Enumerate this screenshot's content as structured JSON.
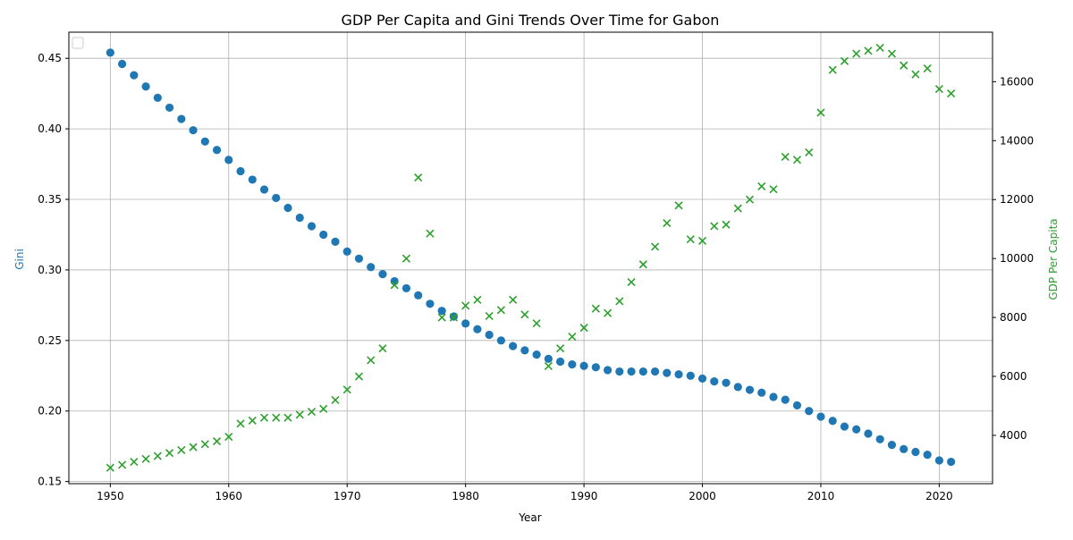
{
  "chart_data": {
    "type": "scatter",
    "title": "GDP Per Capita and Gini Trends Over Time for Gabon",
    "xlabel": "Year",
    "ylabel_left": "Gini",
    "ylabel_right": "GDP Per Capita",
    "xlim": [
      1946.5,
      2024.5
    ],
    "ylim_left": [
      0.1485,
      0.4685
    ],
    "ylim_right": [
      2360,
      17680
    ],
    "x_ticks": [
      1950,
      1960,
      1970,
      1980,
      1990,
      2000,
      2010,
      2020
    ],
    "y_ticks_left": [
      "0.15",
      "0.20",
      "0.25",
      "0.30",
      "0.35",
      "0.40",
      "0.45"
    ],
    "y_ticks_right": [
      "4000",
      "6000",
      "8000",
      "10000",
      "12000",
      "14000",
      "16000"
    ],
    "grid": true,
    "legend": "top-left (empty)",
    "colors": {
      "gini": "#1f77b4",
      "gdp": "#2ca02c",
      "grid": "#b0b0b0",
      "axis": "#000000"
    },
    "years": [
      1950,
      1951,
      1952,
      1953,
      1954,
      1955,
      1956,
      1957,
      1958,
      1959,
      1960,
      1961,
      1962,
      1963,
      1964,
      1965,
      1966,
      1967,
      1968,
      1969,
      1970,
      1971,
      1972,
      1973,
      1974,
      1975,
      1976,
      1977,
      1978,
      1979,
      1980,
      1981,
      1982,
      1983,
      1984,
      1985,
      1986,
      1987,
      1988,
      1989,
      1990,
      1991,
      1992,
      1993,
      1994,
      1995,
      1996,
      1997,
      1998,
      1999,
      2000,
      2001,
      2002,
      2003,
      2004,
      2005,
      2006,
      2007,
      2008,
      2009,
      2010,
      2011,
      2012,
      2013,
      2014,
      2015,
      2016,
      2017,
      2018,
      2019,
      2020,
      2021
    ],
    "series": [
      {
        "name": "Gini",
        "axis": "left",
        "marker": "circle",
        "values": [
          0.454,
          0.446,
          0.438,
          0.43,
          0.422,
          0.415,
          0.407,
          0.399,
          0.391,
          0.385,
          0.378,
          0.37,
          0.364,
          0.357,
          0.351,
          0.344,
          0.337,
          0.331,
          0.325,
          0.32,
          0.313,
          0.308,
          0.302,
          0.297,
          0.292,
          0.287,
          0.282,
          0.276,
          0.271,
          0.267,
          0.262,
          0.258,
          0.254,
          0.25,
          0.246,
          0.243,
          0.24,
          0.237,
          0.235,
          0.233,
          0.232,
          0.231,
          0.229,
          0.228,
          0.228,
          0.228,
          0.228,
          0.227,
          0.226,
          0.225,
          0.223,
          0.221,
          0.22,
          0.217,
          0.215,
          0.213,
          0.21,
          0.208,
          0.204,
          0.2,
          0.196,
          0.193,
          0.189,
          0.187,
          0.184,
          0.18,
          0.176,
          0.173,
          0.171,
          0.169,
          0.165,
          0.164
        ]
      },
      {
        "name": "GDP Per Capita",
        "axis": "right",
        "marker": "x",
        "values": [
          2900,
          3000,
          3100,
          3200,
          3300,
          3400,
          3500,
          3600,
          3700,
          3800,
          3950,
          4400,
          4500,
          4600,
          4600,
          4600,
          4700,
          4800,
          4900,
          5200,
          5550,
          6000,
          6550,
          6950,
          9100,
          10000,
          12750,
          10850,
          8000,
          8000,
          8400,
          8600,
          8050,
          8250,
          8600,
          8100,
          7800,
          6350,
          6950,
          7350,
          7650,
          8300,
          8150,
          8550,
          9200,
          9800,
          10400,
          11200,
          11800,
          10650,
          10600,
          11100,
          11150,
          11700,
          12000,
          12450,
          12350,
          13450,
          13350,
          13600,
          14950,
          16400,
          16700,
          16950,
          17050,
          17150,
          16950,
          16550,
          16250,
          16450,
          15750,
          15600
        ]
      }
    ]
  }
}
